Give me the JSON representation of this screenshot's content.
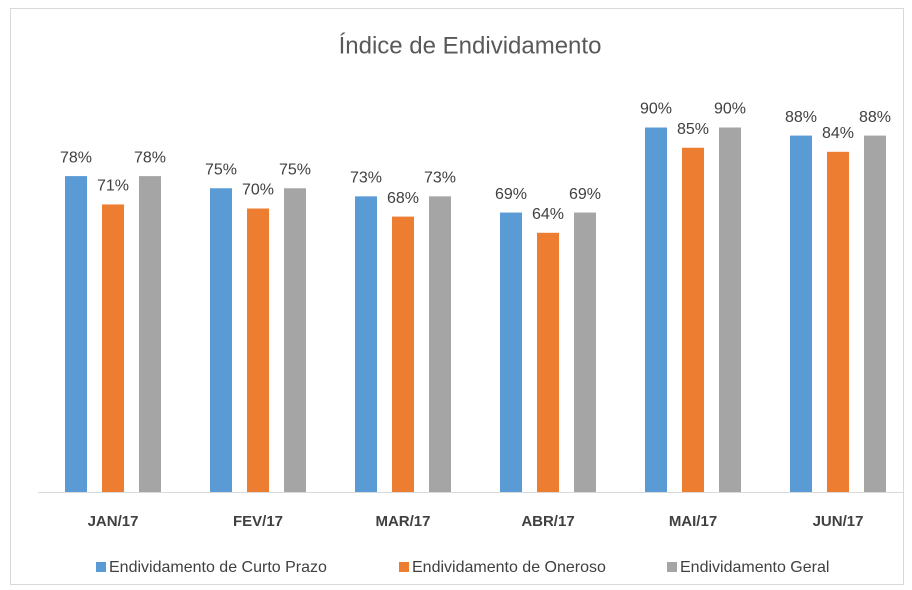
{
  "chart_data": {
    "type": "bar",
    "title": "Índice de Endividamento",
    "categories": [
      "JAN/17",
      "FEV/17",
      "MAR/17",
      "ABR/17",
      "MAI/17",
      "JUN/17"
    ],
    "series": [
      {
        "name": "Endividamento de Curto Prazo",
        "color": "#5b9bd5",
        "values": [
          78,
          75,
          73,
          69,
          90,
          88
        ],
        "value_labels": [
          "78%",
          "75%",
          "73%",
          "69%",
          "90%",
          "88%"
        ]
      },
      {
        "name": "Endividamento de Oneroso",
        "color": "#ed7d31",
        "values": [
          71,
          70,
          68,
          64,
          85,
          84
        ],
        "value_labels": [
          "71%",
          "70%",
          "68%",
          "64%",
          "85%",
          "84%"
        ]
      },
      {
        "name": "Endividamento Geral",
        "color": "#a5a5a5",
        "values": [
          78,
          75,
          73,
          69,
          90,
          88
        ],
        "value_labels": [
          "78%",
          "75%",
          "73%",
          "69%",
          "90%",
          "88%"
        ]
      }
    ],
    "legend": "bottom"
  }
}
